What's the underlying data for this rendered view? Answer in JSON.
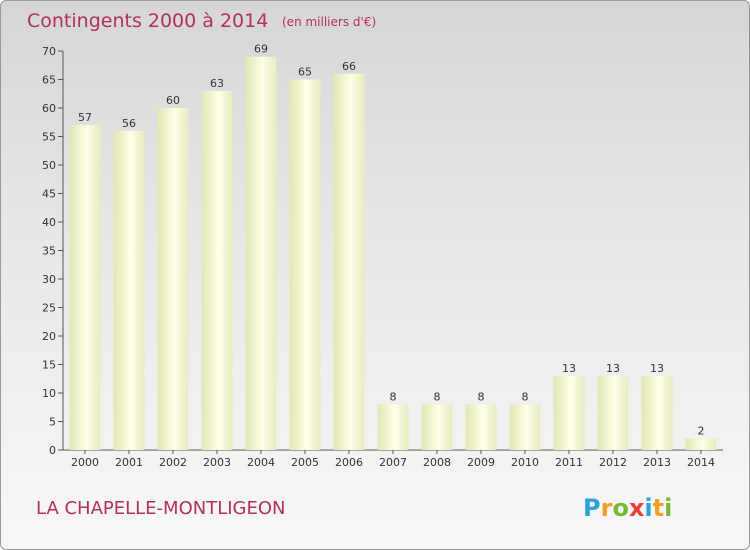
{
  "chart_data": {
    "type": "bar",
    "title": "Contingents 2000 à 2014",
    "subtitle": "(en milliers d'€)",
    "categories": [
      "2000",
      "2001",
      "2002",
      "2003",
      "2004",
      "2005",
      "2006",
      "2007",
      "2008",
      "2009",
      "2010",
      "2011",
      "2012",
      "2013",
      "2014"
    ],
    "values": [
      57,
      56,
      60,
      63,
      69,
      65,
      66,
      8,
      8,
      8,
      8,
      13,
      13,
      13,
      2
    ],
    "ylim": [
      0,
      70
    ],
    "yticks": [
      0,
      5,
      10,
      15,
      20,
      25,
      30,
      35,
      40,
      45,
      50,
      55,
      60,
      65,
      70
    ],
    "grid": false,
    "xlabel": "",
    "ylabel": "",
    "colors": {
      "bar_light": "#ffffe6",
      "bar_dark": "#e2e6b4",
      "title": "#b03060",
      "axis": "#555555"
    }
  },
  "footer": {
    "commune": "LA CHAPELLE-MONTLIGEON",
    "logo_letters": [
      "P",
      "r",
      "o",
      "x",
      "i",
      "t",
      "i"
    ],
    "logo_colors": [
      "#2aa3d8",
      "#f0a01e",
      "#7ab832",
      "#e83e3e",
      "#2aa3d8",
      "#f0a01e",
      "#7ab832"
    ]
  }
}
